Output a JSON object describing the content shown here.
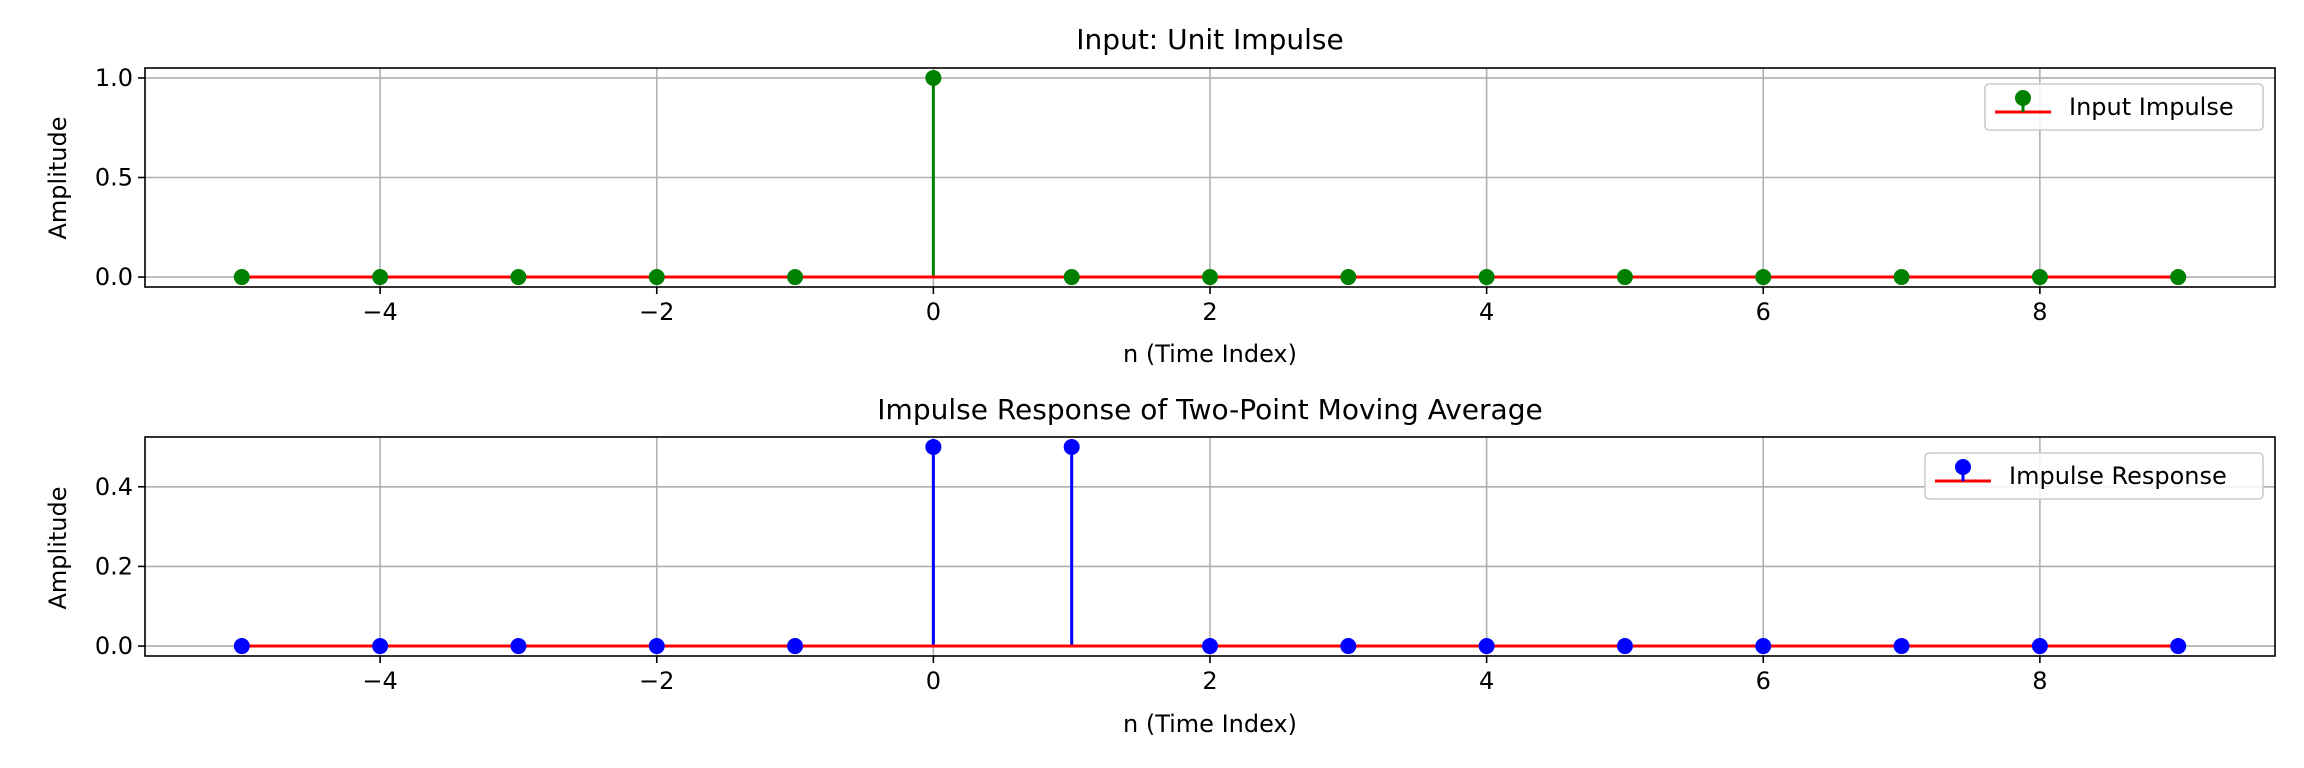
{
  "chart_data": [
    {
      "type": "stem",
      "title": "Input: Unit Impulse",
      "xlabel": "n (Time Index)",
      "ylabel": "Amplitude",
      "xlim": [
        -5.7,
        9.7
      ],
      "ylim": [
        -0.05,
        1.05
      ],
      "xticks": [
        -4,
        -2,
        0,
        2,
        4,
        6,
        8
      ],
      "xtick_labels": [
        "−4",
        "−2",
        "0",
        "2",
        "4",
        "6",
        "8"
      ],
      "yticks": [
        0.0,
        0.5,
        1.0
      ],
      "ytick_labels": [
        "0.0",
        "0.5",
        "1.0"
      ],
      "grid": true,
      "legend_position": "upper right",
      "baseline_color": "#ff0000",
      "series": [
        {
          "name": "Input Impulse",
          "color": "#008000",
          "x": [
            -5,
            -4,
            -3,
            -2,
            -1,
            0,
            1,
            2,
            3,
            4,
            5,
            6,
            7,
            8,
            9
          ],
          "y": [
            0,
            0,
            0,
            0,
            0,
            1,
            0,
            0,
            0,
            0,
            0,
            0,
            0,
            0,
            0
          ]
        }
      ]
    },
    {
      "type": "stem",
      "title": "Impulse Response of Two-Point Moving Average",
      "xlabel": "n (Time Index)",
      "ylabel": "Amplitude",
      "xlim": [
        -5.7,
        9.7
      ],
      "ylim": [
        -0.025,
        0.525
      ],
      "xticks": [
        -4,
        -2,
        0,
        2,
        4,
        6,
        8
      ],
      "xtick_labels": [
        "−4",
        "−2",
        "0",
        "2",
        "4",
        "6",
        "8"
      ],
      "yticks": [
        0.0,
        0.2,
        0.4
      ],
      "ytick_labels": [
        "0.0",
        "0.2",
        "0.4"
      ],
      "grid": true,
      "legend_position": "upper right",
      "baseline_color": "#ff0000",
      "series": [
        {
          "name": "Impulse Response",
          "color": "#0000ff",
          "x": [
            -5,
            -4,
            -3,
            -2,
            -1,
            0,
            1,
            2,
            3,
            4,
            5,
            6,
            7,
            8,
            9
          ],
          "y": [
            0,
            0,
            0,
            0,
            0,
            0.5,
            0.5,
            0,
            0,
            0,
            0,
            0,
            0,
            0,
            0
          ]
        }
      ]
    }
  ]
}
